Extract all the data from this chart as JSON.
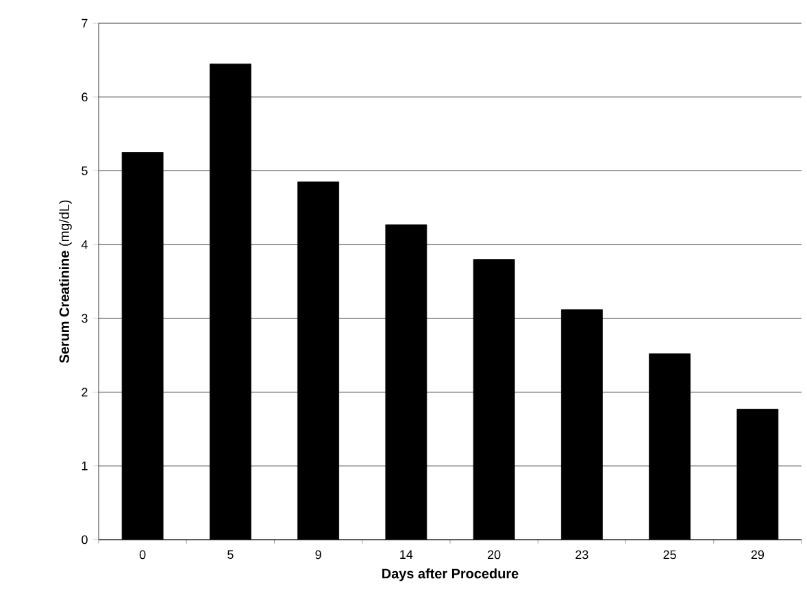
{
  "chart_data": {
    "type": "bar",
    "xlabel": "Days after Procedure",
    "ylabel": "**Serum Creatinine** (mg/dL)",
    "categories": [
      "0",
      "5",
      "9",
      "14",
      "20",
      "23",
      "25",
      "29"
    ],
    "values": [
      5.25,
      6.45,
      4.85,
      4.27,
      3.8,
      3.12,
      2.52,
      1.77
    ],
    "color": "#000000",
    "ylim": [
      0,
      7
    ],
    "yticks": [
      0,
      1,
      2,
      3,
      4,
      5,
      6,
      7
    ],
    "grid": "y"
  }
}
